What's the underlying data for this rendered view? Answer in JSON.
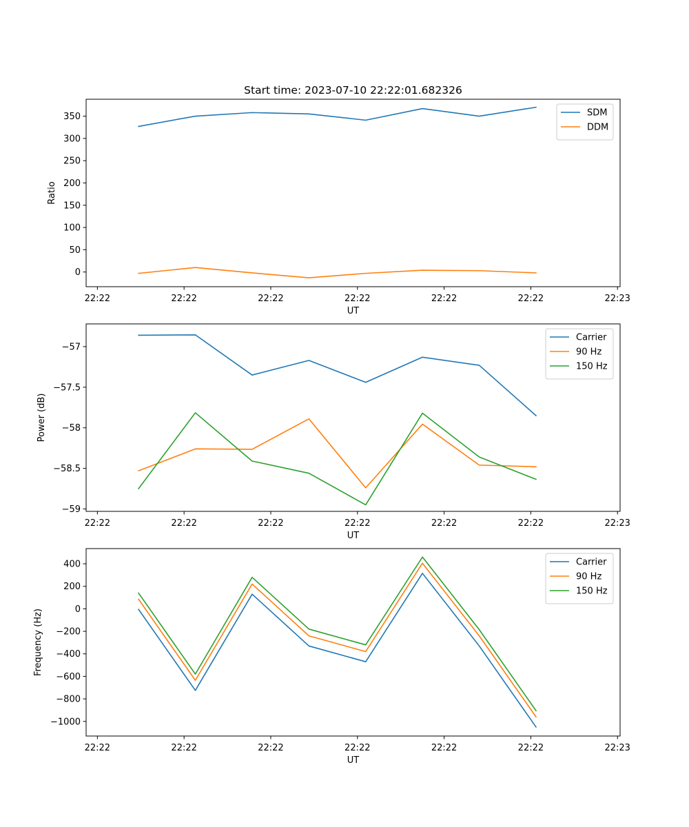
{
  "chart_data": [
    {
      "type": "line",
      "title": "Start time: 2023-07-10 22:22:01.682326",
      "xlabel": "UT",
      "ylabel": "Ratio",
      "x_ticks": [
        "22:22",
        "22:22",
        "22:22",
        "22:22",
        "22:22",
        "22:22",
        "22:23"
      ],
      "x_tick_values": [
        0,
        10,
        20,
        30,
        40,
        50,
        60
      ],
      "xlim": [
        -1.3,
        60.3
      ],
      "x": [
        4.75,
        11.3,
        17.85,
        24.4,
        30.95,
        37.5,
        44.05,
        50.6
      ],
      "ylim": [
        -33,
        388
      ],
      "y_ticks": [
        0,
        50,
        100,
        150,
        200,
        250,
        300,
        350
      ],
      "legend_position": "upper right",
      "grid": false,
      "series": [
        {
          "name": "SDM",
          "color": "#1f77b4",
          "values": [
            327,
            350,
            358,
            355,
            341,
            367,
            350,
            370
          ]
        },
        {
          "name": "DDM",
          "color": "#ff7f0e",
          "values": [
            -3,
            10,
            -2,
            -13,
            -3,
            4,
            3,
            -2
          ]
        }
      ]
    },
    {
      "type": "line",
      "title": "",
      "xlabel": "UT",
      "ylabel": "Power (dB)",
      "x_ticks": [
        "22:22",
        "22:22",
        "22:22",
        "22:22",
        "22:22",
        "22:22",
        "22:23"
      ],
      "x_tick_values": [
        0,
        10,
        20,
        30,
        40,
        50,
        60
      ],
      "xlim": [
        -1.3,
        60.3
      ],
      "x": [
        4.75,
        11.3,
        17.85,
        24.4,
        30.95,
        37.5,
        44.05,
        50.6
      ],
      "ylim": [
        -59.03,
        -56.72
      ],
      "y_ticks": [
        -59.0,
        -58.5,
        -58.0,
        -57.5,
        -57.0
      ],
      "legend_position": "upper right",
      "grid": false,
      "series": [
        {
          "name": "Carrier",
          "color": "#1f77b4",
          "values": [
            -56.86,
            -56.855,
            -57.35,
            -57.17,
            -57.44,
            -57.13,
            -57.23,
            -57.85
          ]
        },
        {
          "name": "90 Hz",
          "color": "#ff7f0e",
          "values": [
            -58.53,
            -58.26,
            -58.265,
            -57.89,
            -58.74,
            -57.955,
            -58.46,
            -58.48
          ]
        },
        {
          "name": "150 Hz",
          "color": "#2ca02c",
          "values": [
            -58.75,
            -57.815,
            -58.41,
            -58.56,
            -58.95,
            -57.82,
            -58.36,
            -58.635
          ]
        }
      ]
    },
    {
      "type": "line",
      "title": "",
      "xlabel": "UT",
      "ylabel": "Frequency (Hz)",
      "x_ticks": [
        "22:22",
        "22:22",
        "22:22",
        "22:22",
        "22:22",
        "22:22",
        "22:23"
      ],
      "x_tick_values": [
        0,
        10,
        20,
        30,
        40,
        50,
        60
      ],
      "xlim": [
        -1.3,
        60.3
      ],
      "x": [
        4.75,
        11.3,
        17.85,
        24.4,
        30.95,
        37.5,
        44.05,
        50.6
      ],
      "ylim": [
        -1130,
        535
      ],
      "y_ticks": [
        -1000,
        -800,
        -600,
        -400,
        -200,
        0,
        200,
        400
      ],
      "legend_position": "upper right",
      "grid": false,
      "series": [
        {
          "name": "Carrier",
          "color": "#1f77b4",
          "values": [
            -5,
            -725,
            130,
            -330,
            -470,
            315,
            -330,
            -1050
          ]
        },
        {
          "name": "90 Hz",
          "color": "#ff7f0e",
          "values": [
            85,
            -635,
            220,
            -240,
            -380,
            405,
            -240,
            -960
          ]
        },
        {
          "name": "150 Hz",
          "color": "#2ca02c",
          "values": [
            140,
            -580,
            280,
            -180,
            -320,
            460,
            -185,
            -905
          ]
        }
      ]
    }
  ]
}
